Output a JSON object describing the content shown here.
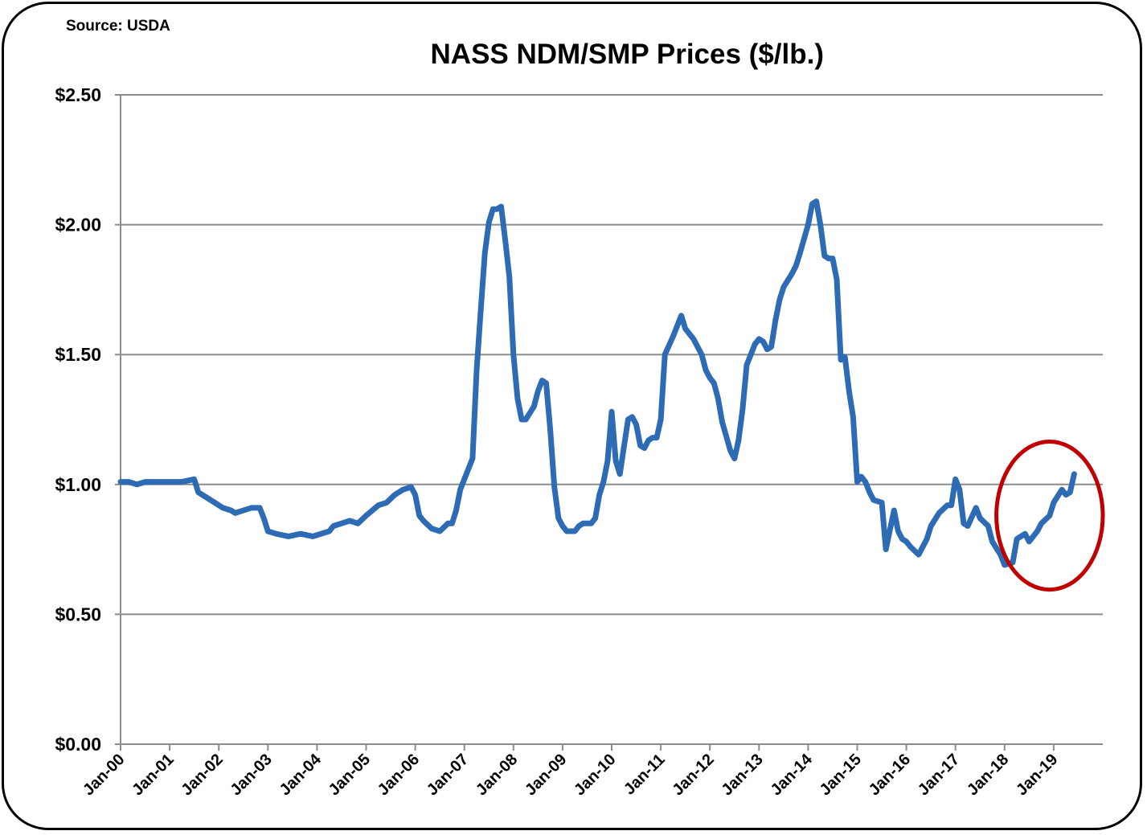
{
  "chart_data": {
    "type": "line",
    "title": "NASS NDM/SMP Prices ($/lb.)",
    "source": "Source: USDA",
    "xlabel": "",
    "ylabel": "",
    "xlim": [
      "2000-01",
      "2019-12"
    ],
    "ylim": [
      0,
      2.5
    ],
    "y_ticks": [
      0,
      0.5,
      1.0,
      1.5,
      2.0,
      2.5
    ],
    "y_tick_labels": [
      "$0.00",
      "$0.50",
      "$1.00",
      "$1.50",
      "$2.00",
      "$2.50"
    ],
    "x_tick_labels": [
      "Jan-00",
      "Jan-01",
      "Jan-02",
      "Jan-03",
      "Jan-04",
      "Jan-05",
      "Jan-06",
      "Jan-07",
      "Jan-08",
      "Jan-09",
      "Jan-10",
      "Jan-11",
      "Jan-12",
      "Jan-13",
      "Jan-14",
      "Jan-15",
      "Jan-16",
      "Jan-17",
      "Jan-18",
      "Jan-19"
    ],
    "grid": "horizontal",
    "legend": "none",
    "line_color": "#2e6bb5",
    "annotations": [
      {
        "type": "ellipse",
        "color": "#c00000",
        "center": [
          "2018-12",
          0.88
        ],
        "span_months": 26,
        "span_value": 0.57
      }
    ],
    "series": [
      {
        "points": [
          [
            "2000-01",
            1.01
          ],
          [
            "2000-03",
            1.01
          ],
          [
            "2000-05",
            1.0
          ],
          [
            "2000-07",
            1.01
          ],
          [
            "2000-11",
            1.01
          ],
          [
            "2001-04",
            1.01
          ],
          [
            "2001-07",
            1.02
          ],
          [
            "2001-08",
            0.97
          ],
          [
            "2001-10",
            0.95
          ],
          [
            "2001-12",
            0.93
          ],
          [
            "2002-02",
            0.91
          ],
          [
            "2002-04",
            0.9
          ],
          [
            "2002-05",
            0.89
          ],
          [
            "2002-07",
            0.9
          ],
          [
            "2002-09",
            0.91
          ],
          [
            "2002-11",
            0.91
          ],
          [
            "2002-12",
            0.87
          ],
          [
            "2003-01",
            0.82
          ],
          [
            "2003-03",
            0.81
          ],
          [
            "2003-06",
            0.8
          ],
          [
            "2003-09",
            0.81
          ],
          [
            "2003-12",
            0.8
          ],
          [
            "2004-02",
            0.81
          ],
          [
            "2004-04",
            0.82
          ],
          [
            "2004-05",
            0.84
          ],
          [
            "2004-07",
            0.85
          ],
          [
            "2004-09",
            0.86
          ],
          [
            "2004-11",
            0.85
          ],
          [
            "2005-01",
            0.88
          ],
          [
            "2005-04",
            0.92
          ],
          [
            "2005-06",
            0.93
          ],
          [
            "2005-08",
            0.96
          ],
          [
            "2005-10",
            0.98
          ],
          [
            "2005-12",
            0.99
          ],
          [
            "2006-01",
            0.96
          ],
          [
            "2006-02",
            0.88
          ],
          [
            "2006-03",
            0.86
          ],
          [
            "2006-05",
            0.83
          ],
          [
            "2006-07",
            0.82
          ],
          [
            "2006-09",
            0.85
          ],
          [
            "2006-10",
            0.85
          ],
          [
            "2006-11",
            0.9
          ],
          [
            "2006-12",
            0.98
          ],
          [
            "2007-01",
            1.02
          ],
          [
            "2007-02",
            1.06
          ],
          [
            "2007-03",
            1.1
          ],
          [
            "2007-04",
            1.44
          ],
          [
            "2007-05",
            1.67
          ],
          [
            "2007-06",
            1.89
          ],
          [
            "2007-07",
            2.01
          ],
          [
            "2007-08",
            2.06
          ],
          [
            "2007-09",
            2.06
          ],
          [
            "2007-10",
            2.07
          ],
          [
            "2007-11",
            1.94
          ],
          [
            "2007-12",
            1.8
          ],
          [
            "2008-01",
            1.5
          ],
          [
            "2008-02",
            1.33
          ],
          [
            "2008-03",
            1.25
          ],
          [
            "2008-04",
            1.25
          ],
          [
            "2008-06",
            1.3
          ],
          [
            "2008-07",
            1.36
          ],
          [
            "2008-08",
            1.4
          ],
          [
            "2008-09",
            1.39
          ],
          [
            "2008-10",
            1.21
          ],
          [
            "2008-11",
            0.99
          ],
          [
            "2008-12",
            0.87
          ],
          [
            "2009-01",
            0.84
          ],
          [
            "2009-02",
            0.82
          ],
          [
            "2009-04",
            0.82
          ],
          [
            "2009-05",
            0.84
          ],
          [
            "2009-06",
            0.85
          ],
          [
            "2009-08",
            0.85
          ],
          [
            "2009-09",
            0.87
          ],
          [
            "2009-10",
            0.96
          ],
          [
            "2009-11",
            1.01
          ],
          [
            "2009-12",
            1.09
          ],
          [
            "2010-01",
            1.28
          ],
          [
            "2010-02",
            1.09
          ],
          [
            "2010-03",
            1.04
          ],
          [
            "2010-05",
            1.25
          ],
          [
            "2010-06",
            1.26
          ],
          [
            "2010-07",
            1.23
          ],
          [
            "2010-08",
            1.15
          ],
          [
            "2010-09",
            1.14
          ],
          [
            "2010-10",
            1.17
          ],
          [
            "2010-11",
            1.18
          ],
          [
            "2010-12",
            1.18
          ],
          [
            "2011-01",
            1.25
          ],
          [
            "2011-02",
            1.5
          ],
          [
            "2011-04",
            1.57
          ],
          [
            "2011-05",
            1.61
          ],
          [
            "2011-06",
            1.65
          ],
          [
            "2011-07",
            1.6
          ],
          [
            "2011-09",
            1.56
          ],
          [
            "2011-10",
            1.53
          ],
          [
            "2011-11",
            1.5
          ],
          [
            "2011-12",
            1.44
          ],
          [
            "2012-01",
            1.41
          ],
          [
            "2012-02",
            1.39
          ],
          [
            "2012-03",
            1.33
          ],
          [
            "2012-04",
            1.24
          ],
          [
            "2012-06",
            1.13
          ],
          [
            "2012-07",
            1.1
          ],
          [
            "2012-08",
            1.17
          ],
          [
            "2012-09",
            1.29
          ],
          [
            "2012-10",
            1.46
          ],
          [
            "2012-11",
            1.5
          ],
          [
            "2012-12",
            1.54
          ],
          [
            "2013-01",
            1.56
          ],
          [
            "2013-02",
            1.55
          ],
          [
            "2013-03",
            1.52
          ],
          [
            "2013-04",
            1.53
          ],
          [
            "2013-05",
            1.63
          ],
          [
            "2013-06",
            1.71
          ],
          [
            "2013-07",
            1.76
          ],
          [
            "2013-09",
            1.81
          ],
          [
            "2013-10",
            1.84
          ],
          [
            "2013-11",
            1.89
          ],
          [
            "2014-01",
            2.0
          ],
          [
            "2014-02",
            2.08
          ],
          [
            "2014-03",
            2.09
          ],
          [
            "2014-04",
            2.0
          ],
          [
            "2014-05",
            1.88
          ],
          [
            "2014-06",
            1.87
          ],
          [
            "2014-07",
            1.87
          ],
          [
            "2014-08",
            1.79
          ],
          [
            "2014-09",
            1.48
          ],
          [
            "2014-10",
            1.49
          ],
          [
            "2014-11",
            1.36
          ],
          [
            "2014-12",
            1.26
          ],
          [
            "2015-01",
            1.01
          ],
          [
            "2015-02",
            1.03
          ],
          [
            "2015-03",
            1.01
          ],
          [
            "2015-04",
            0.97
          ],
          [
            "2015-05",
            0.94
          ],
          [
            "2015-07",
            0.93
          ],
          [
            "2015-08",
            0.75
          ],
          [
            "2015-10",
            0.9
          ],
          [
            "2015-11",
            0.82
          ],
          [
            "2015-12",
            0.79
          ],
          [
            "2016-01",
            0.78
          ],
          [
            "2016-02",
            0.76
          ],
          [
            "2016-04",
            0.73
          ],
          [
            "2016-06",
            0.79
          ],
          [
            "2016-07",
            0.84
          ],
          [
            "2016-09",
            0.89
          ],
          [
            "2016-11",
            0.92
          ],
          [
            "2016-12",
            0.92
          ],
          [
            "2017-01",
            1.02
          ],
          [
            "2017-02",
            0.98
          ],
          [
            "2017-03",
            0.85
          ],
          [
            "2017-04",
            0.84
          ],
          [
            "2017-06",
            0.91
          ],
          [
            "2017-07",
            0.87
          ],
          [
            "2017-09",
            0.84
          ],
          [
            "2017-10",
            0.78
          ],
          [
            "2017-12",
            0.73
          ],
          [
            "2018-01",
            0.69
          ],
          [
            "2018-03",
            0.7
          ],
          [
            "2018-04",
            0.79
          ],
          [
            "2018-06",
            0.81
          ],
          [
            "2018-07",
            0.78
          ],
          [
            "2018-09",
            0.82
          ],
          [
            "2018-10",
            0.85
          ],
          [
            "2018-12",
            0.88
          ],
          [
            "2019-01",
            0.93
          ],
          [
            "2019-03",
            0.98
          ],
          [
            "2019-04",
            0.96
          ],
          [
            "2019-05",
            0.97
          ],
          [
            "2019-06",
            1.04
          ]
        ]
      }
    ]
  }
}
